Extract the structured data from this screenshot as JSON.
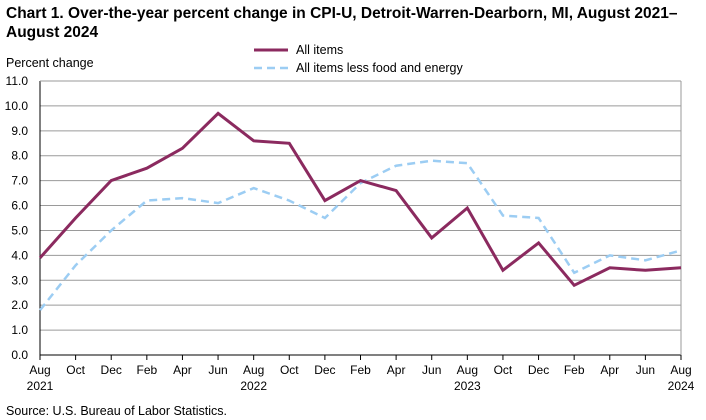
{
  "chart_data": {
    "type": "line",
    "title": "Chart 1. Over-the-year percent change in CPI-U, Detroit-Warren-Dearborn, MI, August 2021–August 2024",
    "ylabel": "Percent change",
    "xlabel": "",
    "ylim": [
      0,
      11
    ],
    "yticks": [
      "0.0",
      "1.0",
      "2.0",
      "3.0",
      "4.0",
      "5.0",
      "6.0",
      "7.0",
      "8.0",
      "9.0",
      "10.0",
      "11.0"
    ],
    "grid": true,
    "legend_position": "top-center",
    "x_ticks": [
      {
        "label": "Aug",
        "year": "2021"
      },
      {
        "label": "Oct",
        "year": ""
      },
      {
        "label": "Dec",
        "year": ""
      },
      {
        "label": "Feb",
        "year": ""
      },
      {
        "label": "Apr",
        "year": ""
      },
      {
        "label": "Jun",
        "year": ""
      },
      {
        "label": "Aug",
        "year": "2022"
      },
      {
        "label": "Oct",
        "year": ""
      },
      {
        "label": "Dec",
        "year": ""
      },
      {
        "label": "Feb",
        "year": ""
      },
      {
        "label": "Apr",
        "year": ""
      },
      {
        "label": "Jun",
        "year": ""
      },
      {
        "label": "Aug",
        "year": "2023"
      },
      {
        "label": "Oct",
        "year": ""
      },
      {
        "label": "Dec",
        "year": ""
      },
      {
        "label": "Feb",
        "year": ""
      },
      {
        "label": "Apr",
        "year": ""
      },
      {
        "label": "Jun",
        "year": ""
      },
      {
        "label": "Aug",
        "year": "2024"
      }
    ],
    "series": [
      {
        "name": "All items",
        "color": "#8b2a5f",
        "style": "solid",
        "values": [
          3.9,
          5.5,
          7.0,
          7.5,
          8.3,
          9.7,
          8.6,
          8.5,
          6.2,
          7.0,
          6.6,
          4.7,
          5.9,
          3.4,
          4.5,
          2.8,
          3.5,
          3.4,
          3.5
        ]
      },
      {
        "name": "All items less food and energy",
        "color": "#9ccdf3",
        "style": "dashed",
        "values": [
          1.8,
          3.6,
          5.0,
          6.2,
          6.3,
          6.1,
          6.7,
          6.2,
          5.5,
          6.9,
          7.6,
          7.8,
          7.7,
          5.6,
          5.5,
          3.3,
          4.0,
          3.8,
          4.2
        ]
      }
    ]
  },
  "source": "Source: U.S. Bureau of Labor Statistics."
}
